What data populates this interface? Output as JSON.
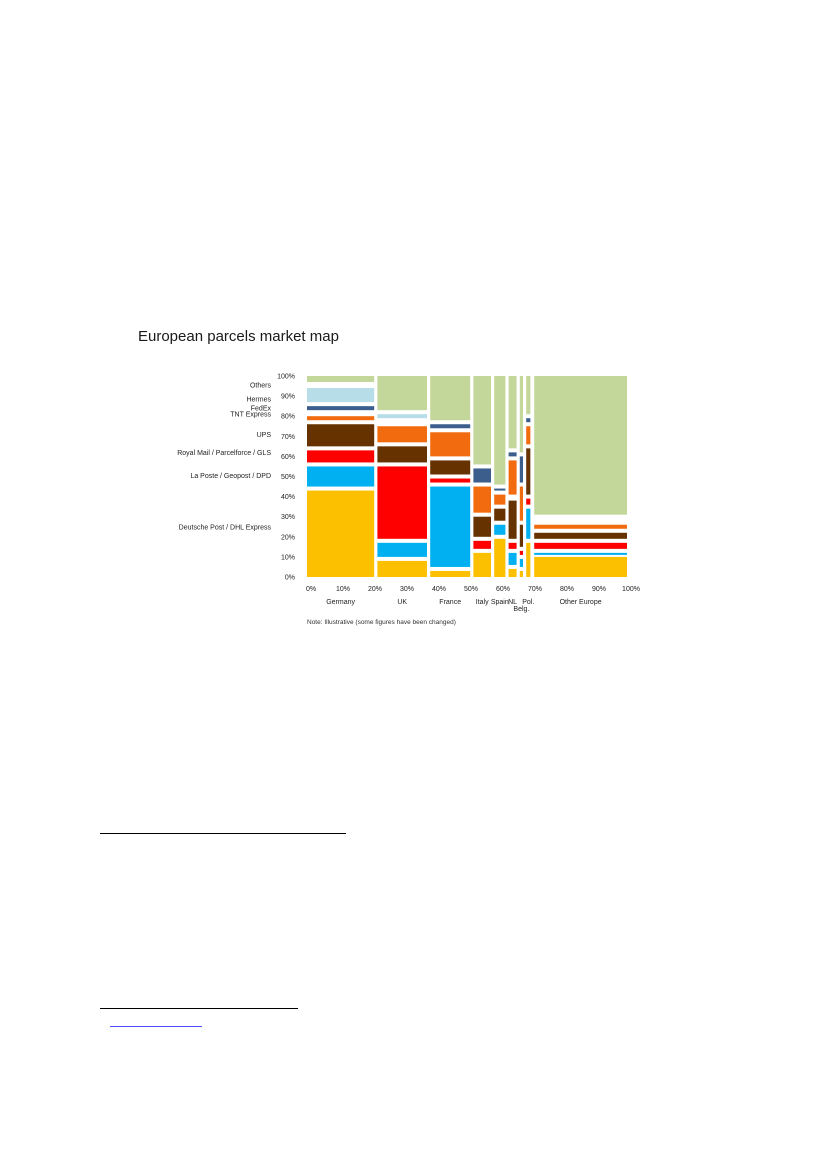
{
  "document": {
    "link_text": ""
  },
  "chart_data": {
    "type": "mosaic",
    "title": "European parcels market map",
    "note": "Note: Illustrative (some figures have been changed)",
    "y_ticks": [
      "0%",
      "10%",
      "20%",
      "30%",
      "40%",
      "50%",
      "60%",
      "70%",
      "80%",
      "90%",
      "100%"
    ],
    "x_ticks": [
      "0%",
      "10%",
      "20%",
      "30%",
      "40%",
      "50%",
      "60%",
      "70%",
      "80%",
      "90%",
      "100%"
    ],
    "legend": [
      {
        "label": "Others",
        "y": 95.5
      },
      {
        "label": "Hermes",
        "y": 88.5
      },
      {
        "label": "FedEx",
        "y": 84
      },
      {
        "label": "TNT Express",
        "y": 81
      },
      {
        "label": "UPS",
        "y": 71
      },
      {
        "label": "Royal Mail / Parcelforce / GLS",
        "y": 62
      },
      {
        "label": "La Poste / Geopost / DPD",
        "y": 50.5
      },
      {
        "label": "Deutsche Post / DHL Express",
        "y": 25
      }
    ],
    "colors": {
      "yellow": "#fdc000",
      "blue": "#00b0f0",
      "red": "#ff0000",
      "brown": "#663300",
      "orange": "#f26c0f",
      "navy": "#3b5e8c",
      "lightblue": "#b7dde8",
      "green": "#c4d79b"
    },
    "columns": [
      {
        "label": "Germany",
        "label_row": 0,
        "x0": 0,
        "x1": 21,
        "segments": [
          {
            "color": "yellow",
            "y0": 0,
            "y1": 43
          },
          {
            "color": "blue",
            "y0": 45,
            "y1": 55
          },
          {
            "color": "red",
            "y0": 57,
            "y1": 63
          },
          {
            "color": "brown",
            "y0": 65,
            "y1": 76
          },
          {
            "color": "orange",
            "y0": 78,
            "y1": 80
          },
          {
            "color": "navy",
            "y0": 83,
            "y1": 85
          },
          {
            "color": "lightblue",
            "y0": 87,
            "y1": 94
          },
          {
            "color": "green",
            "y0": 97,
            "y1": 100
          }
        ]
      },
      {
        "label": "UK",
        "label_row": 0,
        "x0": 22,
        "x1": 37.5,
        "segments": [
          {
            "color": "yellow",
            "y0": 0,
            "y1": 8
          },
          {
            "color": "blue",
            "y0": 10,
            "y1": 17
          },
          {
            "color": "red",
            "y0": 19,
            "y1": 55
          },
          {
            "color": "brown",
            "y0": 57,
            "y1": 65
          },
          {
            "color": "orange",
            "y0": 67,
            "y1": 75
          },
          {
            "color": "lightblue",
            "y0": 79,
            "y1": 81
          },
          {
            "color": "green",
            "y0": 83,
            "y1": 100
          }
        ]
      },
      {
        "label": "France",
        "label_row": 0,
        "x0": 38.5,
        "x1": 51,
        "segments": [
          {
            "color": "yellow",
            "y0": 0,
            "y1": 3
          },
          {
            "color": "blue",
            "y0": 5,
            "y1": 45
          },
          {
            "color": "red",
            "y0": 47,
            "y1": 49
          },
          {
            "color": "brown",
            "y0": 51,
            "y1": 58
          },
          {
            "color": "orange",
            "y0": 60,
            "y1": 72
          },
          {
            "color": "navy",
            "y0": 74,
            "y1": 76
          },
          {
            "color": "green",
            "y0": 78,
            "y1": 100
          }
        ]
      },
      {
        "label": "Italy",
        "label_row": 0,
        "x0": 52,
        "x1": 57.5,
        "segments": [
          {
            "color": "yellow",
            "y0": 0,
            "y1": 12
          },
          {
            "color": "red",
            "y0": 14,
            "y1": 18
          },
          {
            "color": "brown",
            "y0": 20,
            "y1": 30
          },
          {
            "color": "orange",
            "y0": 32,
            "y1": 45
          },
          {
            "color": "navy",
            "y0": 47,
            "y1": 54
          },
          {
            "color": "green",
            "y0": 56,
            "y1": 100
          }
        ]
      },
      {
        "label": "Spain",
        "label_row": 0,
        "x0": 58.5,
        "x1": 62,
        "segments": [
          {
            "color": "yellow",
            "y0": 0,
            "y1": 19
          },
          {
            "color": "blue",
            "y0": 21,
            "y1": 26
          },
          {
            "color": "brown",
            "y0": 28,
            "y1": 34
          },
          {
            "color": "orange",
            "y0": 36,
            "y1": 41
          },
          {
            "color": "navy",
            "y0": 43,
            "y1": 44
          },
          {
            "color": "green",
            "y0": 46,
            "y1": 100
          }
        ]
      },
      {
        "label": "NL",
        "label_row": 0,
        "x0": 63,
        "x1": 65.5,
        "segments": [
          {
            "color": "yellow",
            "y0": 0,
            "y1": 4
          },
          {
            "color": "blue",
            "y0": 6,
            "y1": 12
          },
          {
            "color": "red",
            "y0": 14,
            "y1": 17
          },
          {
            "color": "brown",
            "y0": 19,
            "y1": 38
          },
          {
            "color": "orange",
            "y0": 41,
            "y1": 58
          },
          {
            "color": "navy",
            "y0": 60,
            "y1": 62
          },
          {
            "color": "green",
            "y0": 64,
            "y1": 100
          }
        ]
      },
      {
        "label": "Belg.",
        "label_row": 1,
        "x0": 66.5,
        "x1": 67.5,
        "segments": [
          {
            "color": "yellow",
            "y0": 0,
            "y1": 3
          },
          {
            "color": "blue",
            "y0": 5,
            "y1": 9
          },
          {
            "color": "red",
            "y0": 11,
            "y1": 13
          },
          {
            "color": "brown",
            "y0": 15,
            "y1": 26
          },
          {
            "color": "orange",
            "y0": 28,
            "y1": 45
          },
          {
            "color": "navy",
            "y0": 47,
            "y1": 60
          },
          {
            "color": "green",
            "y0": 62,
            "y1": 100
          }
        ]
      },
      {
        "label": "Pol.",
        "label_row": 0,
        "x0": 68.5,
        "x1": 69.8,
        "segments": [
          {
            "color": "yellow",
            "y0": 0,
            "y1": 17
          },
          {
            "color": "blue",
            "y0": 19,
            "y1": 34
          },
          {
            "color": "red",
            "y0": 36,
            "y1": 39
          },
          {
            "color": "brown",
            "y0": 41,
            "y1": 64
          },
          {
            "color": "orange",
            "y0": 66,
            "y1": 75
          },
          {
            "color": "navy",
            "y0": 77,
            "y1": 79
          },
          {
            "color": "green",
            "y0": 81,
            "y1": 100
          }
        ]
      },
      {
        "label": "Other Europe",
        "label_row": 0,
        "x0": 71,
        "x1": 100,
        "segments": [
          {
            "color": "yellow",
            "y0": 0,
            "y1": 10
          },
          {
            "color": "blue",
            "y0": 11,
            "y1": 12
          },
          {
            "color": "red",
            "y0": 14,
            "y1": 17
          },
          {
            "color": "brown",
            "y0": 19,
            "y1": 22
          },
          {
            "color": "orange",
            "y0": 24,
            "y1": 26
          },
          {
            "color": "green",
            "y0": 31,
            "y1": 100
          }
        ]
      }
    ]
  }
}
